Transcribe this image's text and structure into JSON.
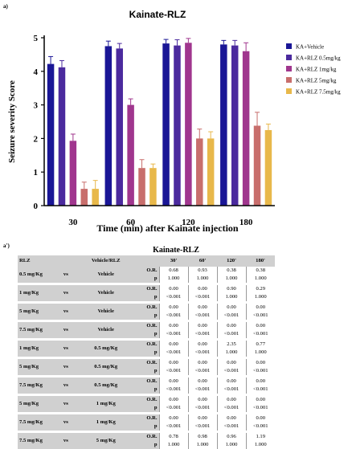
{
  "panel_a_label": "a)",
  "panel_b_label": "a')",
  "colors": {
    "KA+Vehicle": "#1a1696",
    "KA+RLZ 0.5mg/kg": "#4b2a9e",
    "KA+RLZ 1mg/kg": "#a0368e",
    "KA+RLZ 5mg/kg": "#c86e6c",
    "KA+RLZ 7.5mg/kg": "#e8b84a"
  },
  "chart_data": {
    "type": "bar",
    "title": "Kainate-RLZ",
    "xlabel": "Time (min) after Kainate injection",
    "ylabel": "Seizure severity Score",
    "ylim": [
      0,
      5
    ],
    "yticks": [
      "0",
      "1",
      "2",
      "3",
      "4",
      "5"
    ],
    "categories": [
      "30",
      "60",
      "120",
      "180"
    ],
    "legend_position": "right",
    "series": [
      {
        "name": "KA+Vehicle",
        "values": [
          4.22,
          4.75,
          4.83,
          4.8
        ],
        "errors": [
          0.22,
          0.15,
          0.12,
          0.12
        ]
      },
      {
        "name": "KA+RLZ 0.5mg/kg",
        "values": [
          4.12,
          4.68,
          4.77,
          4.77
        ],
        "errors": [
          0.2,
          0.15,
          0.17,
          0.15
        ]
      },
      {
        "name": "KA+RLZ 1mg/kg",
        "values": [
          1.93,
          3.0,
          4.85,
          4.6
        ],
        "errors": [
          0.2,
          0.18,
          0.13,
          0.25
        ]
      },
      {
        "name": "KA+RLZ 5mg/kg",
        "values": [
          0.5,
          1.12,
          2.0,
          2.38
        ],
        "errors": [
          0.2,
          0.25,
          0.28,
          0.4
        ]
      },
      {
        "name": "KA+RLZ 7.5mg/kg",
        "values": [
          0.5,
          1.12,
          2.0,
          2.25
        ],
        "errors": [
          0.25,
          0.12,
          0.2,
          0.18
        ]
      }
    ]
  },
  "table": {
    "title": "Kainate-RLZ",
    "headers": [
      "RLZ",
      "",
      "Vehicle/RLZ",
      "",
      "30'",
      "60'",
      "120'",
      "180'"
    ],
    "rows": [
      {
        "a": "0.5 mg/Kg",
        "vs": "vs",
        "b": "Vehicle",
        "or": [
          "0.68",
          "0.93",
          "0.38",
          "0.38"
        ],
        "p": [
          "1.000",
          "1.000",
          "1.000",
          "1.000"
        ]
      },
      {
        "a": "1 mg/Kg",
        "vs": "vs",
        "b": "Vehicle",
        "or": [
          "0.00",
          "0.00",
          "0.90",
          "0.29"
        ],
        "p": [
          "<0.001",
          "<0.001",
          "1.000",
          "1.000"
        ]
      },
      {
        "a": "5 mg/Kg",
        "vs": "vs",
        "b": "Vehicle",
        "or": [
          "0.00",
          "0.00",
          "0.00",
          "0.00"
        ],
        "p": [
          "<0.001",
          "<0.001",
          "<0.001",
          "<0.001"
        ]
      },
      {
        "a": "7.5 mg/Kg",
        "vs": "vs",
        "b": "Vehicle",
        "or": [
          "0.00",
          "0.00",
          "0.00",
          "0.00"
        ],
        "p": [
          "<0.001",
          "<0.001",
          "<0.001",
          "<0.001"
        ]
      },
      {
        "a": "1 mg/Kg",
        "vs": "vs",
        "b": "0.5 mg/Kg",
        "or": [
          "0.00",
          "0.00",
          "2.35",
          "0.77"
        ],
        "p": [
          "<0.001",
          "<0.001",
          "1.000",
          "1.000"
        ]
      },
      {
        "a": "5 mg/Kg",
        "vs": "vs",
        "b": "0.5 mg/Kg",
        "or": [
          "0.00",
          "0.00",
          "0.00",
          "0.00"
        ],
        "p": [
          "<0.001",
          "<0.001",
          "<0.001",
          "<0.001"
        ]
      },
      {
        "a": "7.5 mg/Kg",
        "vs": "vs",
        "b": "0.5 mg/Kg",
        "or": [
          "0.00",
          "0.00",
          "0.00",
          "0.00"
        ],
        "p": [
          "<0.001",
          "<0.001",
          "<0.001",
          "<0.001"
        ]
      },
      {
        "a": "5 mg/Kg",
        "vs": "vs",
        "b": "1 mg/Kg",
        "or": [
          "0.00",
          "0.00",
          "0.00",
          "0.00"
        ],
        "p": [
          "<0.001",
          "<0.001",
          "<0.001",
          "<0.001"
        ]
      },
      {
        "a": "7.5 mg/Kg",
        "vs": "vs",
        "b": "1 mg/Kg",
        "or": [
          "0.00",
          "0.00",
          "0.00",
          "0.00"
        ],
        "p": [
          "<0.001",
          "<0.001",
          "<0.001",
          "<0.001"
        ]
      },
      {
        "a": "7.5 mg/Kg",
        "vs": "vs",
        "b": "5 mg/Kg",
        "or": [
          "0.78",
          "0.98",
          "0.96",
          "1.19"
        ],
        "p": [
          "1.000",
          "1.000",
          "1.000",
          "1.000"
        ]
      }
    ],
    "or_label": "O.R.",
    "p_label": "p"
  }
}
